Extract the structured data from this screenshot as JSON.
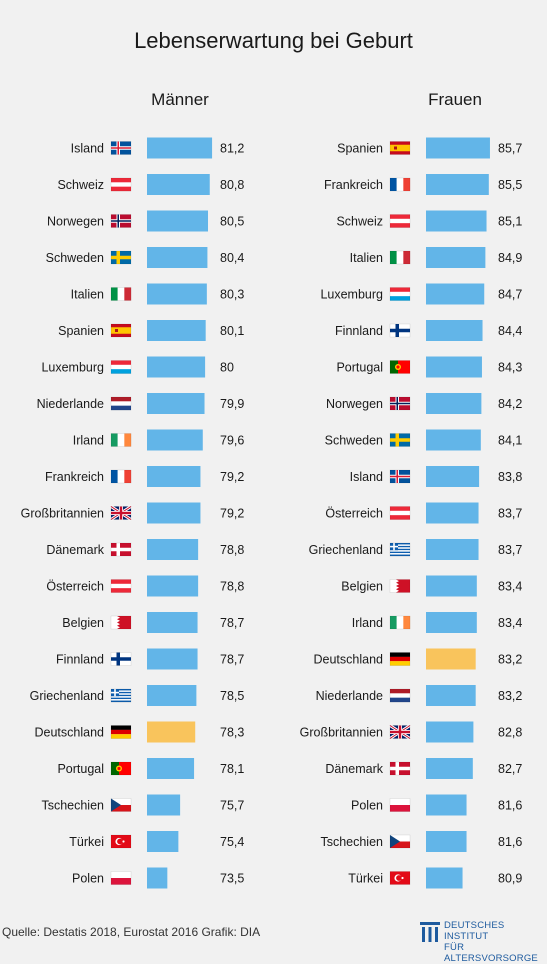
{
  "title": "Lebenserwartung bei Geburt",
  "footer": {
    "source": "Quelle: Destatis 2018, Eurostat 2016  Grafik: DIA",
    "logo_line1": "DEUTSCHES INSTITUT",
    "logo_line2": "FÜR ALTERSVORSORGE"
  },
  "colors": {
    "bar": "#62b5e8",
    "highlight": "#f9c45c",
    "background": "#f1f1f1"
  },
  "chart_data": [
    {
      "type": "bar",
      "title": "Männer",
      "highlight": "Deutschland",
      "categories": [
        "Island",
        "Schweiz",
        "Norwegen",
        "Schweden",
        "Italien",
        "Spanien",
        "Luxemburg",
        "Niederlande",
        "Irland",
        "Frankreich",
        "Großbritannien",
        "Dänemark",
        "Österreich",
        "Belgien",
        "Finnland",
        "Griechenland",
        "Deutschland",
        "Portugal",
        "Tschechien",
        "Türkei",
        "Polen"
      ],
      "flags": [
        "is",
        "ch",
        "no",
        "se",
        "it",
        "es",
        "lu",
        "nl",
        "ie",
        "fr",
        "gb",
        "dk",
        "at",
        "be",
        "fi",
        "gr",
        "de",
        "pt",
        "cz",
        "tr",
        "pl"
      ],
      "values": [
        81.2,
        80.8,
        80.5,
        80.4,
        80.3,
        80.1,
        80,
        79.9,
        79.6,
        79.2,
        79.2,
        78.8,
        78.8,
        78.7,
        78.7,
        78.5,
        78.3,
        78.1,
        75.7,
        75.4,
        73.5
      ],
      "labels": [
        "81,2",
        "80,8",
        "80,5",
        "80,4",
        "80,3",
        "80,1",
        "80",
        "79,9",
        "79,6",
        "79,2",
        "79,2",
        "78,8",
        "78,8",
        "78,7",
        "78,7",
        "78,5",
        "78,3",
        "78,1",
        "75,7",
        "75,4",
        "73,5"
      ]
    },
    {
      "type": "bar",
      "title": "Frauen",
      "highlight": "Deutschland",
      "categories": [
        "Spanien",
        "Frankreich",
        "Schweiz",
        "Italien",
        "Luxemburg",
        "Finnland",
        "Portugal",
        "Norwegen",
        "Schweden",
        "Island",
        "Österreich",
        "Griechenland",
        "Belgien",
        "Irland",
        "Deutschland",
        "Niederlande",
        "Großbritannien",
        "Dänemark",
        "Polen",
        "Tschechien",
        "Türkei"
      ],
      "flags": [
        "es",
        "fr",
        "ch",
        "it",
        "lu",
        "fi",
        "pt",
        "no",
        "se",
        "is",
        "at",
        "gr",
        "be",
        "ie",
        "de",
        "nl",
        "gb",
        "dk",
        "pl",
        "cz",
        "tr"
      ],
      "values": [
        85.7,
        85.5,
        85.1,
        84.9,
        84.7,
        84.4,
        84.3,
        84.2,
        84.1,
        83.8,
        83.7,
        83.7,
        83.4,
        83.4,
        83.2,
        83.2,
        82.8,
        82.7,
        81.6,
        81.6,
        80.9
      ],
      "labels": [
        "85,7",
        "85,5",
        "85,1",
        "84,9",
        "84,7",
        "84,4",
        "84,3",
        "84,2",
        "84,1",
        "83,8",
        "83,7",
        "83,7",
        "83,4",
        "83,4",
        "83,2",
        "83,2",
        "82,8",
        "82,7",
        "81,6",
        "81,6",
        "80,9"
      ]
    }
  ]
}
